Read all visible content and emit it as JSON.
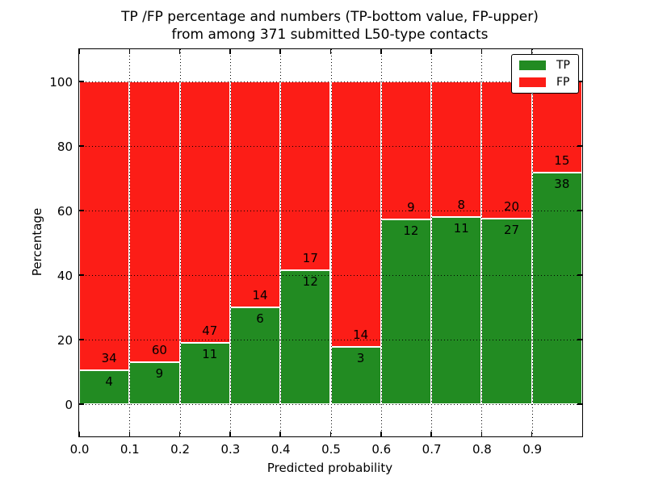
{
  "title": {
    "line1": "TP /FP percentage and numbers (TP-bottom value, FP-upper)",
    "line2": "from among 371 submitted L50-type contacts"
  },
  "chart_data": {
    "type": "bar",
    "stacked": true,
    "normalized_to_percent": true,
    "title": "TP /FP percentage and numbers (TP-bottom value, FP-upper) from among 371 submitted L50-type contacts",
    "total_contacts": 371,
    "xlabel": "Predicted probability",
    "ylabel": "Percentage",
    "xlim": [
      0.0,
      1.0
    ],
    "ylim": [
      -10,
      110
    ],
    "bin_width": 0.1,
    "categories": [
      "0.0-0.1",
      "0.1-0.2",
      "0.2-0.3",
      "0.3-0.4",
      "0.4-0.5",
      "0.5-0.6",
      "0.6-0.7",
      "0.7-0.8",
      "0.8-0.9",
      "0.9-1.0"
    ],
    "series": [
      {
        "name": "TP",
        "color": "#228b22",
        "counts": [
          4,
          9,
          11,
          6,
          12,
          3,
          12,
          11,
          27,
          38
        ],
        "percent": [
          10.53,
          13.04,
          18.97,
          30.0,
          41.38,
          17.65,
          57.14,
          57.89,
          57.45,
          71.7
        ]
      },
      {
        "name": "FP",
        "color": "#fc1d17",
        "counts": [
          34,
          60,
          47,
          14,
          17,
          14,
          9,
          8,
          20,
          15
        ],
        "percent": [
          89.47,
          86.96,
          81.03,
          70.0,
          58.62,
          82.35,
          42.86,
          42.11,
          42.55,
          28.3
        ]
      }
    ],
    "bar_edge_color": "#ffffff",
    "grid": {
      "style": "dotted",
      "color": "#000000",
      "x_values": [
        0.1,
        0.2,
        0.3,
        0.4,
        0.5,
        0.6,
        0.7,
        0.8,
        0.9
      ],
      "y_values": [
        0,
        20,
        40,
        60,
        80,
        100
      ]
    },
    "xticks": {
      "values": [
        0.0,
        0.1,
        0.2,
        0.3,
        0.4,
        0.5,
        0.6,
        0.7,
        0.8,
        0.9
      ],
      "labels": [
        "0.0",
        "0.1",
        "0.2",
        "0.3",
        "0.4",
        "0.5",
        "0.6",
        "0.7",
        "0.8",
        "0.9"
      ]
    },
    "yticks": {
      "values": [
        0,
        20,
        40,
        60,
        80,
        100
      ],
      "labels": [
        "0",
        "20",
        "40",
        "60",
        "80",
        "100"
      ]
    },
    "legend": {
      "position": "upper right",
      "entries": [
        {
          "label": "TP",
          "color": "#228b22"
        },
        {
          "label": "FP",
          "color": "#fc1d17"
        }
      ]
    }
  }
}
